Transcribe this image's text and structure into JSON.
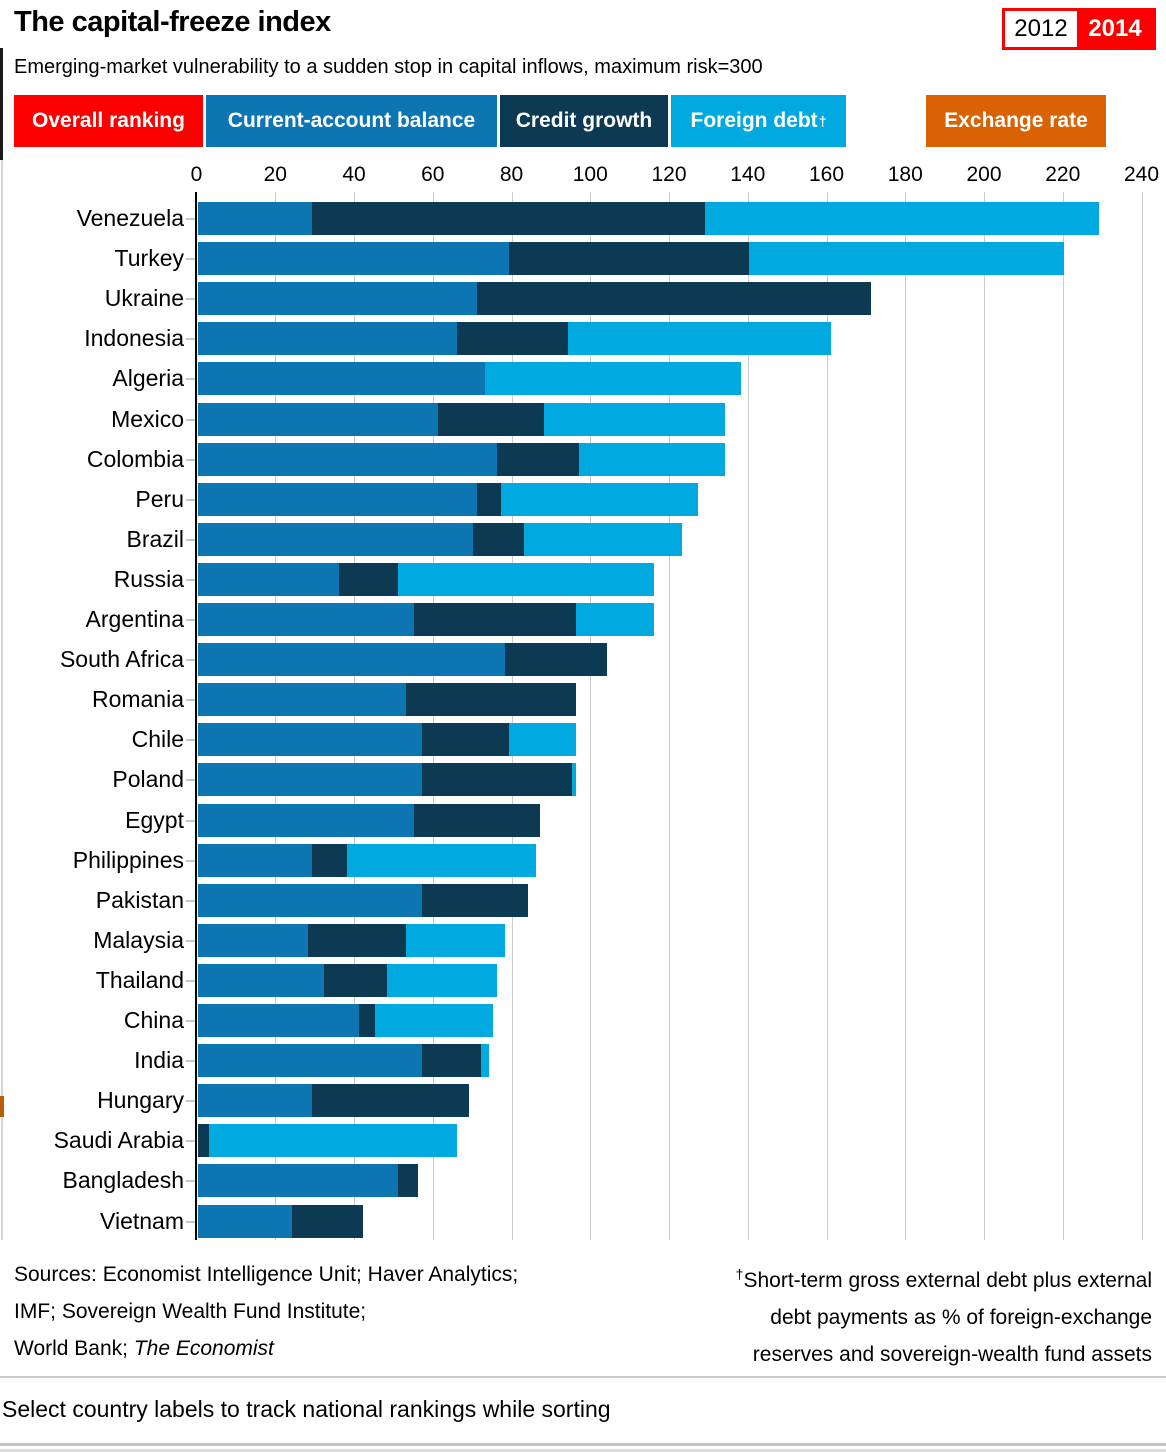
{
  "header": {
    "title": "The capital-freeze index",
    "subtitle": "Emerging-market vulnerability to a sudden stop in capital inflows, maximum risk=300",
    "year_toggle": {
      "options": [
        "2012",
        "2014"
      ],
      "selected": "2014"
    }
  },
  "legend": {
    "buttons": [
      {
        "id": "overall-ranking",
        "label": "Overall ranking",
        "dagger": "",
        "color": "#fa0000"
      },
      {
        "id": "current-account-balance",
        "label": "Current-account balance",
        "dagger": "",
        "color": "#0d76b2"
      },
      {
        "id": "credit-growth",
        "label": "Credit growth",
        "dagger": "",
        "color": "#0c3a52"
      },
      {
        "id": "foreign-debt",
        "label": "Foreign debt",
        "dagger": "†",
        "color": "#00a9e0"
      },
      {
        "id": "exchange-rate",
        "label": "Exchange rate",
        "dagger": "",
        "color": "#d96203"
      }
    ]
  },
  "chart_data": {
    "type": "bar",
    "orientation": "horizontal",
    "stacked": true,
    "title": "The capital-freeze index",
    "xlabel": "",
    "ylabel": "",
    "xlim": [
      0,
      240
    ],
    "x_ticks": [
      0,
      20,
      40,
      60,
      80,
      100,
      120,
      140,
      160,
      180,
      200,
      220,
      240
    ],
    "grid": true,
    "categories": [
      "Venezuela",
      "Turkey",
      "Ukraine",
      "Indonesia",
      "Algeria",
      "Mexico",
      "Colombia",
      "Peru",
      "Brazil",
      "Russia",
      "Argentina",
      "South Africa",
      "Romania",
      "Chile",
      "Poland",
      "Egypt",
      "Philippines",
      "Pakistan",
      "Malaysia",
      "Thailand",
      "China",
      "India",
      "Hungary",
      "Saudi Arabia",
      "Bangladesh",
      "Vietnam"
    ],
    "series": [
      {
        "name": "Current-account balance",
        "color": "#0d76b2",
        "values": [
          29,
          79,
          71,
          66,
          73,
          61,
          76,
          71,
          70,
          36,
          55,
          78,
          53,
          57,
          57,
          55,
          29,
          57,
          28,
          32,
          41,
          57,
          29,
          0,
          51,
          24
        ]
      },
      {
        "name": "Credit growth",
        "color": "#0c3a52",
        "values": [
          100,
          61,
          100,
          28,
          0,
          27,
          21,
          6,
          13,
          15,
          41,
          26,
          43,
          22,
          38,
          32,
          9,
          27,
          25,
          16,
          4,
          15,
          40,
          3,
          5,
          18
        ]
      },
      {
        "name": "Foreign debt",
        "color": "#00a9e0",
        "values": [
          100,
          80,
          0,
          67,
          65,
          46,
          37,
          50,
          40,
          65,
          20,
          0,
          0,
          17,
          1,
          0,
          48,
          0,
          25,
          28,
          30,
          2,
          0,
          63,
          0,
          0
        ]
      }
    ],
    "overall_totals": [
      229,
      220,
      171,
      161,
      138,
      134,
      134,
      127,
      123,
      116,
      116,
      104,
      96,
      96,
      96,
      87,
      86,
      84,
      78,
      76,
      75,
      74,
      69,
      66,
      56,
      42
    ]
  },
  "footer": {
    "sources_line1": "Sources: Economist Intelligence Unit; Haver Analytics;",
    "sources_line2": "IMF; Sovereign Wealth Fund Institute;",
    "sources_line3_prefix": "World Bank; ",
    "sources_line3_italic": "The Economist",
    "footnote_dagger": "†",
    "footnote_line1": "Short-term gross external debt plus external",
    "footnote_line2": "debt payments as % of foreign-exchange",
    "footnote_line3": "reserves and sovereign-wealth fund assets"
  },
  "status_bar": {
    "text": "Select country labels to track national rankings while sorting"
  }
}
